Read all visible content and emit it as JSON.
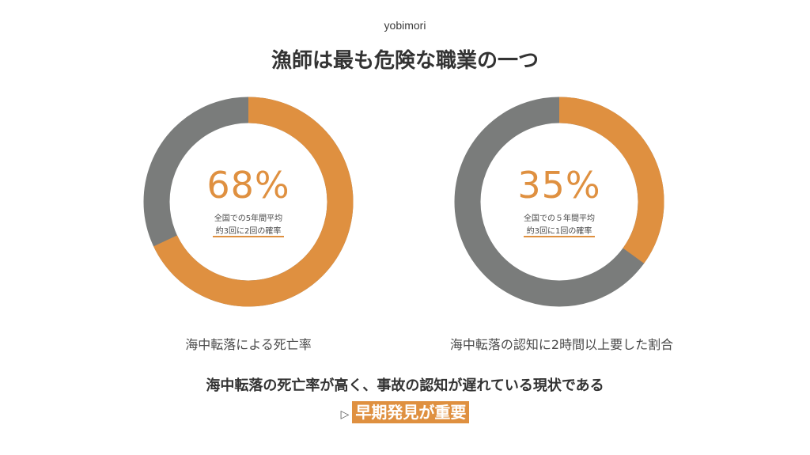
{
  "header": {
    "brand": "yobimori",
    "title": "漁師は最も危険な職業の一つ"
  },
  "charts": [
    {
      "percent_label": "68%",
      "value": 0.68,
      "line1": "全国での5年間平均",
      "line2": "約3回に2回の確率",
      "caption": "海中転落による死亡率"
    },
    {
      "percent_label": "35%",
      "value": 0.35,
      "line1": "全国での５年間平均",
      "line2": "約3回に1回の確率",
      "caption": "海中転落の認知に2時間以上要した割合"
    }
  ],
  "colors": {
    "accent": "#df9040",
    "remainder": "#7a7c7b"
  },
  "conclusion": {
    "text": "海中転落の死亡率が高く、事故の認知が遅れている現状である",
    "arrow": "▷",
    "highlight": "早期発見が重要"
  }
}
